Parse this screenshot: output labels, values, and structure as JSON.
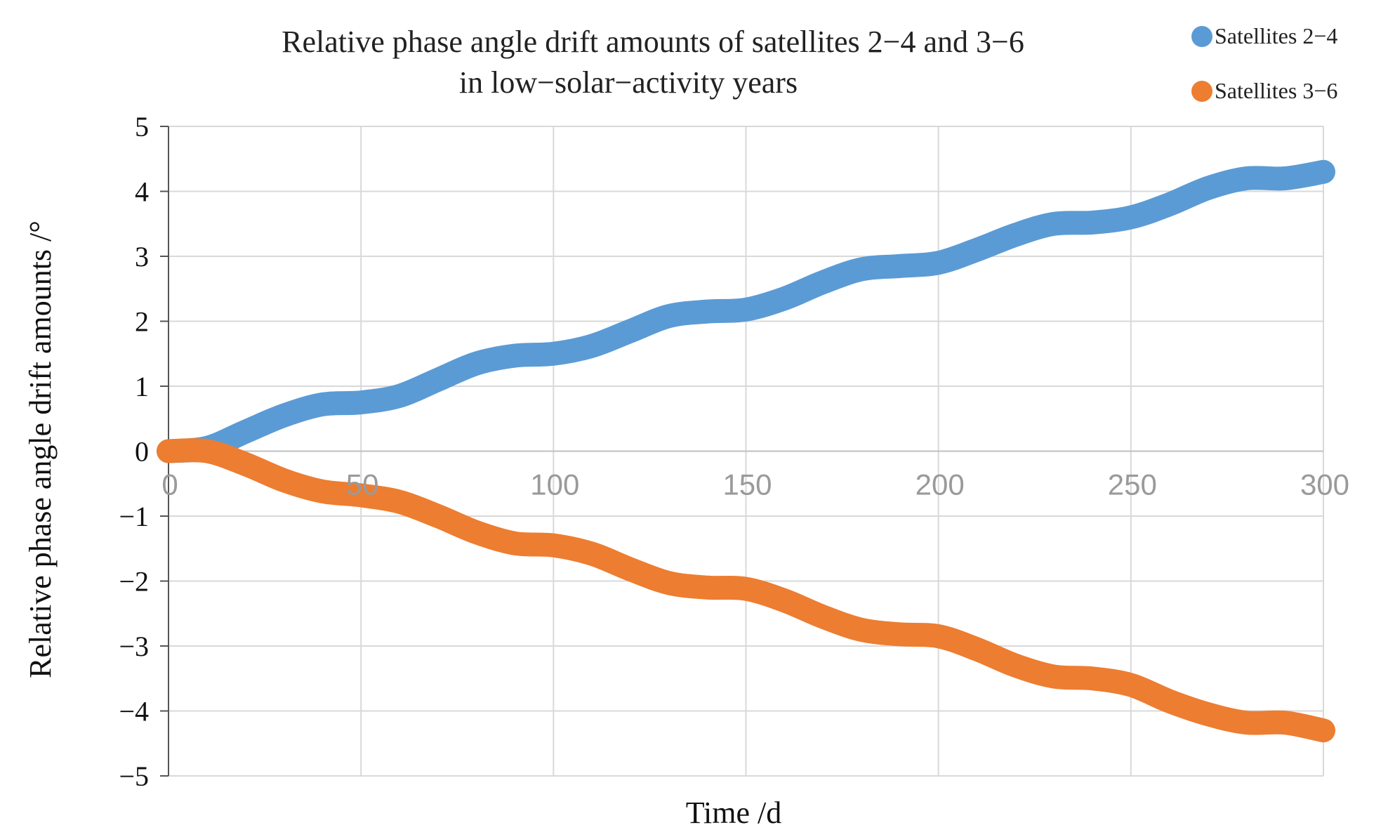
{
  "chart_data": {
    "type": "line",
    "title": [
      "Relative phase angle drift amounts of satellites 2−4 and 3−6",
      "in low−solar−activity years"
    ],
    "xlabel": "Time /d",
    "ylabel": "Relative phase angle drift amounts /°",
    "xlim": [
      0,
      300
    ],
    "ylim": [
      -5,
      5
    ],
    "xticks": [
      0,
      50,
      100,
      150,
      200,
      250,
      300
    ],
    "xtick_labels": [
      "0",
      "50",
      "100",
      "150",
      "200",
      "250",
      "300"
    ],
    "yticks": [
      5,
      4,
      3,
      2,
      1,
      0,
      -1,
      -2,
      -3,
      -4,
      -5
    ],
    "ytick_labels": [
      "5",
      "4",
      "3",
      "2",
      "1",
      "0",
      "−1",
      "−2",
      "−3",
      "−4",
      "−5"
    ],
    "grid": true,
    "legend_position": "top-right",
    "series": [
      {
        "name": "Satellites 2−4",
        "color": "#5B9BD5",
        "x": [
          0,
          10,
          20,
          30,
          40,
          50,
          60,
          70,
          80,
          90,
          100,
          110,
          120,
          130,
          140,
          150,
          160,
          170,
          180,
          190,
          200,
          210,
          220,
          230,
          240,
          250,
          260,
          270,
          280,
          290,
          300
        ],
        "values": [
          0.0,
          0.05,
          0.3,
          0.55,
          0.72,
          0.75,
          0.85,
          1.1,
          1.35,
          1.47,
          1.5,
          1.62,
          1.85,
          2.08,
          2.15,
          2.18,
          2.35,
          2.6,
          2.8,
          2.85,
          2.9,
          3.1,
          3.33,
          3.5,
          3.52,
          3.6,
          3.8,
          4.05,
          4.2,
          4.2,
          4.3
        ]
      },
      {
        "name": "Satellites 3−6",
        "color": "#ED7D31",
        "x": [
          0,
          10,
          20,
          30,
          40,
          50,
          60,
          70,
          80,
          90,
          100,
          110,
          120,
          130,
          140,
          150,
          160,
          170,
          180,
          190,
          200,
          210,
          220,
          230,
          240,
          250,
          260,
          270,
          280,
          290,
          300
        ],
        "values": [
          0.0,
          0.0,
          -0.2,
          -0.45,
          -0.62,
          -0.68,
          -0.78,
          -1.0,
          -1.25,
          -1.42,
          -1.45,
          -1.58,
          -1.82,
          -2.03,
          -2.1,
          -2.12,
          -2.3,
          -2.55,
          -2.75,
          -2.82,
          -2.85,
          -3.05,
          -3.3,
          -3.47,
          -3.5,
          -3.6,
          -3.85,
          -4.05,
          -4.18,
          -4.18,
          -4.3
        ]
      }
    ]
  }
}
